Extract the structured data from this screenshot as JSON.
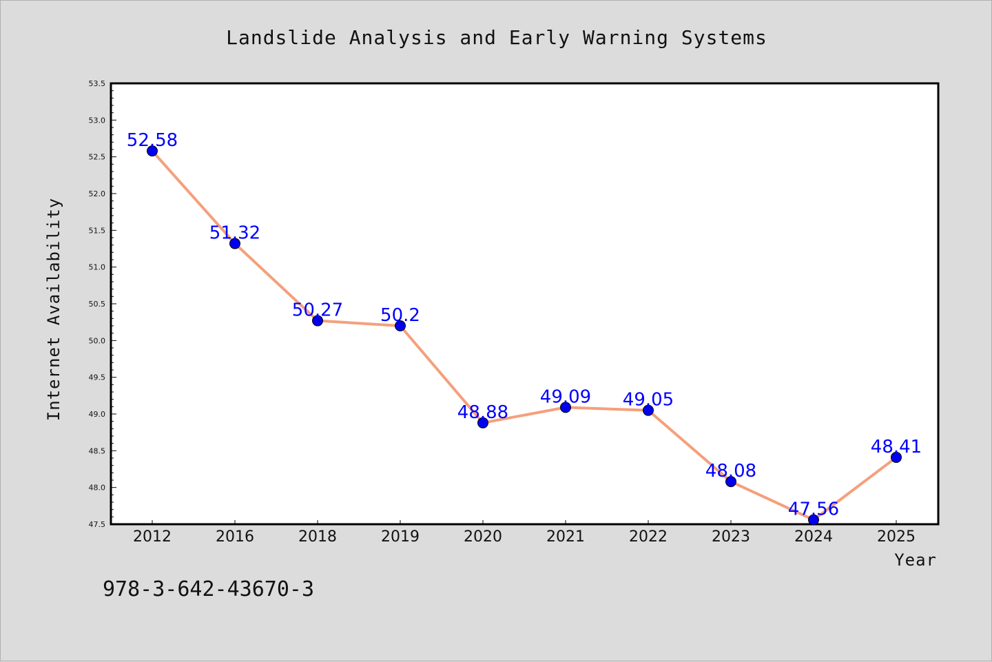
{
  "chart_data": {
    "type": "line",
    "title": "Landslide Analysis and Early Warning Systems",
    "xlabel": "Year",
    "ylabel": "Internet Availability",
    "categories": [
      "2012",
      "2016",
      "2018",
      "2019",
      "2020",
      "2021",
      "2022",
      "2023",
      "2024",
      "2025"
    ],
    "series": [
      {
        "values": [
          52.58,
          51.32,
          50.27,
          50.2,
          48.88,
          49.09,
          49.05,
          48.08,
          47.56,
          48.41
        ],
        "labels": [
          "52.58",
          "51.32",
          "50.27",
          "50.2",
          "48.88",
          "49.09",
          "49.05",
          "48.08",
          "47.56",
          "48.41"
        ],
        "line_color": "#f4a07c",
        "marker_color": "#0000ee",
        "label_color": "#0000ff"
      }
    ],
    "ylim": [
      47.5,
      53.5
    ],
    "yticks": [
      "47.5",
      "48.0",
      "48.5",
      "49.0",
      "49.5",
      "50.0",
      "50.5",
      "51.0",
      "51.5",
      "52.0",
      "52.5",
      "53.0",
      "53.5"
    ],
    "grid": false,
    "legend": "none"
  },
  "footer": {
    "isbn": "978-3-642-43670-3"
  },
  "colors": {
    "background": "#dcdcdc",
    "plot_background": "#ffffff"
  }
}
